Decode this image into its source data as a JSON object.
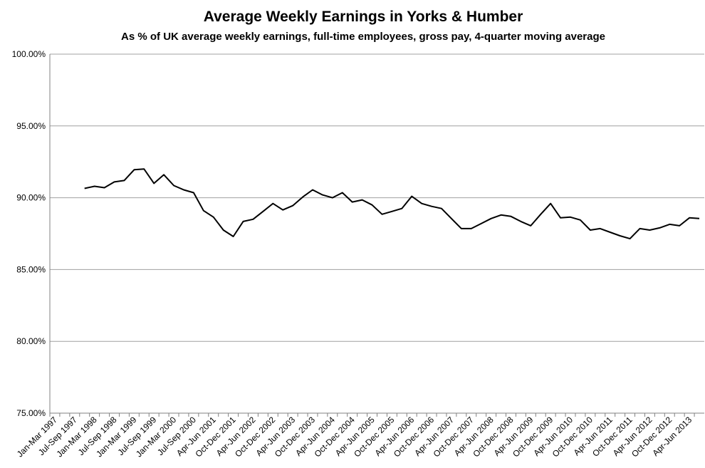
{
  "chart_data": {
    "type": "line",
    "title": "Average Weekly Earnings in Yorks & Humber",
    "subtitle": "As % of UK average weekly earnings, full-time employees,  gross pay, 4-quarter moving average",
    "categories": [
      "Jan-Mar 1997",
      null,
      "Jul-Sep 1997",
      null,
      "Jan-Mar 1998",
      null,
      "Jul-Sep 1998",
      null,
      "Jan-Mar 1999",
      null,
      "Jul-Sep 1999",
      null,
      "Jan-Mar 2000",
      null,
      "Jul-Sep 2000",
      null,
      "Apr-Jun 2001",
      null,
      "Oct-Dec 2001",
      null,
      "Apr-Jun 2002",
      null,
      "Oct-Dec 2002",
      null,
      "Apr-Jun 2003",
      null,
      "Oct-Dec 2003",
      null,
      "Apr-Jun 2004",
      null,
      "Oct-Dec 2004",
      null,
      "Apr-Jun 2005",
      null,
      "Oct-Dec 2005",
      null,
      "Apr-Jun 2006",
      null,
      "Oct-Dec 2006",
      null,
      "Apr-Jun 2007",
      null,
      "Oct-Dec 2007",
      null,
      "Apr-Jun 2008",
      null,
      "Oct-Dec 2008",
      null,
      "Apr-Jun 2009",
      null,
      "Oct-Dec 2009",
      null,
      "Apr-Jun 2010",
      null,
      "Oct-Dec 2010",
      null,
      "Apr-Jun 2011",
      null,
      "Oct-Dec 2011",
      null,
      "Apr-Jun 2012",
      null,
      "Oct-Dec 2012",
      null,
      "Apr-Jun 2013",
      null
    ],
    "values": [
      null,
      null,
      null,
      90.65,
      90.8,
      90.7,
      91.1,
      91.2,
      91.95,
      92.0,
      91.0,
      91.6,
      90.85,
      90.55,
      90.35,
      89.1,
      88.65,
      87.75,
      87.3,
      88.35,
      88.5,
      89.05,
      89.6,
      89.15,
      89.45,
      90.05,
      90.55,
      90.2,
      90.0,
      90.35,
      89.7,
      89.85,
      89.5,
      88.85,
      89.05,
      89.25,
      90.1,
      89.6,
      89.4,
      89.25,
      88.55,
      87.85,
      87.85,
      88.2,
      88.55,
      88.8,
      88.7,
      88.35,
      88.05,
      88.85,
      89.6,
      88.6,
      88.65,
      88.45,
      87.75,
      87.85,
      87.6,
      87.35,
      87.15,
      87.85,
      87.75,
      87.9,
      88.15,
      88.05,
      88.6,
      88.55
    ],
    "color": "#000000",
    "ylim": [
      75,
      100
    ],
    "yticks": [
      {
        "value": 75,
        "label": "75.00%"
      },
      {
        "value": 80,
        "label": "80.00%"
      },
      {
        "value": 85,
        "label": "85.00%"
      },
      {
        "value": 90,
        "label": "90.00%"
      },
      {
        "value": 95,
        "label": "95.00%"
      },
      {
        "value": 100,
        "label": "100.00%"
      }
    ],
    "grid": true
  }
}
